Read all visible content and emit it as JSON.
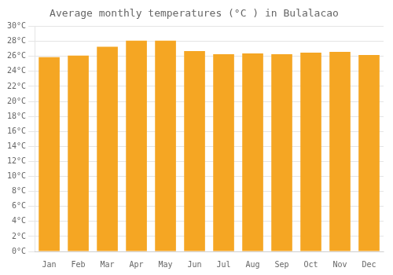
{
  "chart_data": {
    "type": "bar",
    "title": "Average monthly temperatures (°C ) in Bulalacao",
    "categories": [
      "Jan",
      "Feb",
      "Mar",
      "Apr",
      "May",
      "Jun",
      "Jul",
      "Aug",
      "Sep",
      "Oct",
      "Nov",
      "Dec"
    ],
    "values": [
      25.9,
      26.1,
      27.3,
      28.1,
      28.1,
      26.7,
      26.3,
      26.4,
      26.3,
      26.5,
      26.6,
      26.2
    ],
    "color": "#F5A623",
    "ylim": [
      0,
      30
    ],
    "yticks": [
      {
        "value": 0,
        "label": "0°C"
      },
      {
        "value": 2,
        "label": "2°C"
      },
      {
        "value": 4,
        "label": "4°C"
      },
      {
        "value": 6,
        "label": "6°C"
      },
      {
        "value": 8,
        "label": "8°C"
      },
      {
        "value": 10,
        "label": "10°C"
      },
      {
        "value": 12,
        "label": "12°C"
      },
      {
        "value": 14,
        "label": "14°C"
      },
      {
        "value": 16,
        "label": "16°C"
      },
      {
        "value": 18,
        "label": "18°C"
      },
      {
        "value": 20,
        "label": "20°C"
      },
      {
        "value": 22,
        "label": "22°C"
      },
      {
        "value": 24,
        "label": "24°C"
      },
      {
        "value": 26,
        "label": "26°C"
      },
      {
        "value": 28,
        "label": "28°C"
      },
      {
        "value": 30,
        "label": "30°C"
      }
    ],
    "grid": true
  }
}
